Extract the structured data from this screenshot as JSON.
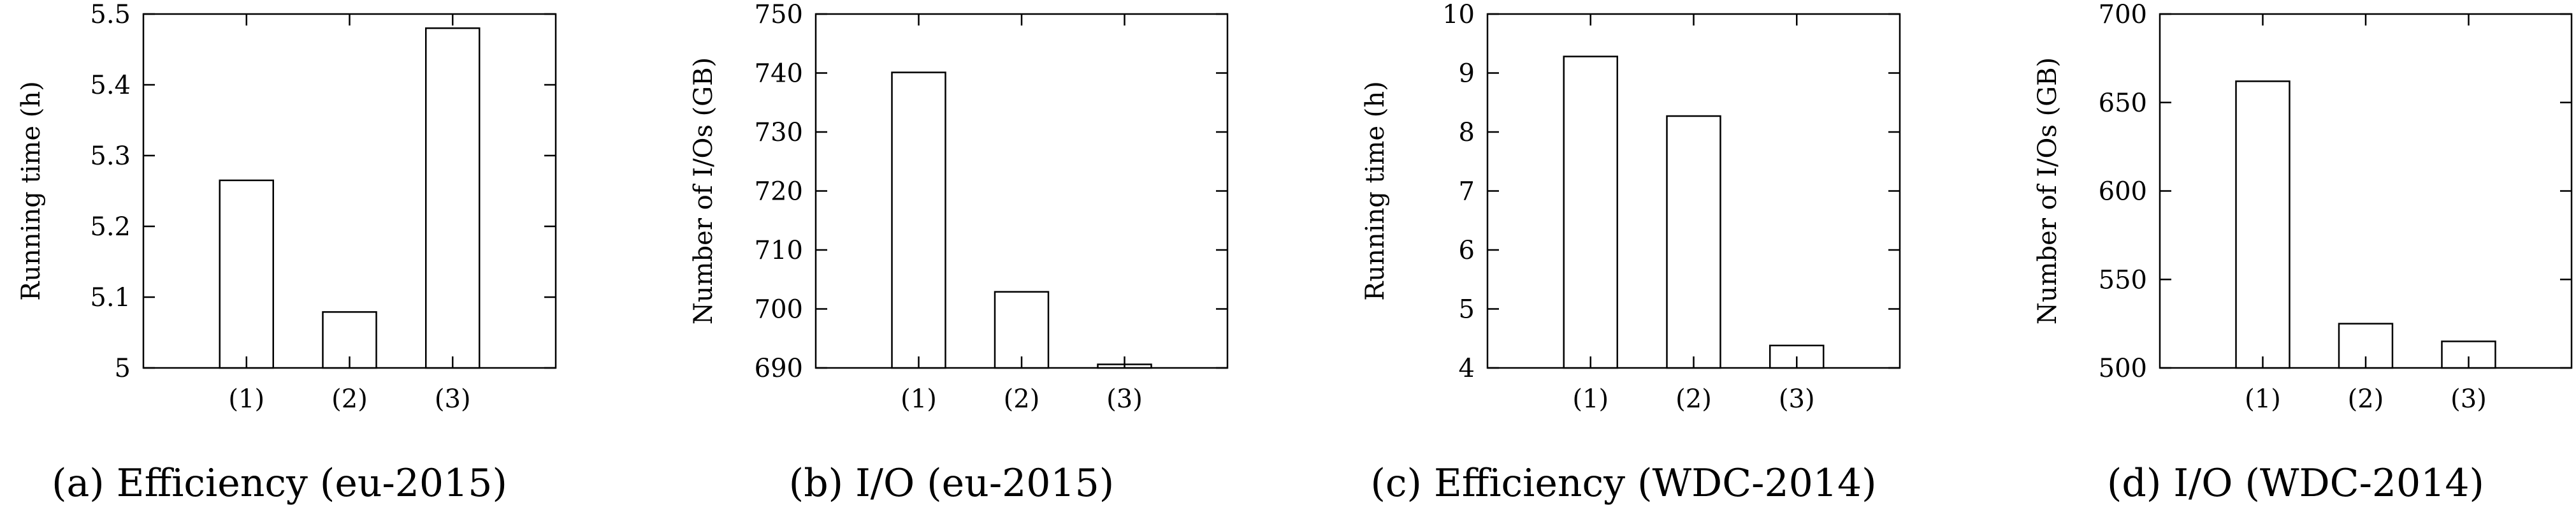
{
  "chart_data": [
    {
      "type": "bar",
      "caption": "(a) Efficiency (eu-2015)",
      "categories": [
        "(1)",
        "(2)",
        "(3)"
      ],
      "values": [
        5.265,
        5.079,
        5.48
      ],
      "ylabel": "Running time (h)",
      "ylim": [
        5,
        5.5
      ],
      "yticks": [
        5,
        5.1,
        5.2,
        5.3,
        5.4,
        5.5
      ],
      "ytick_labels": [
        "5",
        "5.1",
        "5.2",
        "5.3",
        "5.4",
        "5.5"
      ]
    },
    {
      "type": "bar",
      "caption": "(b) I/O (eu-2015)",
      "categories": [
        "(1)",
        "(2)",
        "(3)"
      ],
      "values": [
        740.1,
        702.9,
        690.6
      ],
      "ylabel": "Number of I/Os (GB)",
      "ylim": [
        690,
        750
      ],
      "yticks": [
        690,
        700,
        710,
        720,
        730,
        740,
        750
      ],
      "ytick_labels": [
        "690",
        "700",
        "710",
        "720",
        "730",
        "740",
        "750"
      ]
    },
    {
      "type": "bar",
      "caption": "(c) Efficiency (WDC-2014)",
      "categories": [
        "(1)",
        "(2)",
        "(3)"
      ],
      "values": [
        9.28,
        8.27,
        4.38
      ],
      "ylabel": "Running time (h)",
      "ylim": [
        4,
        10
      ],
      "yticks": [
        4,
        5,
        6,
        7,
        8,
        9,
        10
      ],
      "ytick_labels": [
        "4",
        "5",
        "6",
        "7",
        "8",
        "9",
        "10"
      ]
    },
    {
      "type": "bar",
      "caption": "(d) I/O (WDC-2014)",
      "categories": [
        "(1)",
        "(2)",
        "(3)"
      ],
      "values": [
        662,
        525,
        515
      ],
      "ylabel": "Number of I/Os (GB)",
      "ylim": [
        500,
        700
      ],
      "yticks": [
        500,
        550,
        600,
        650,
        700
      ],
      "ytick_labels": [
        "500",
        "550",
        "600",
        "650",
        "700"
      ]
    }
  ]
}
